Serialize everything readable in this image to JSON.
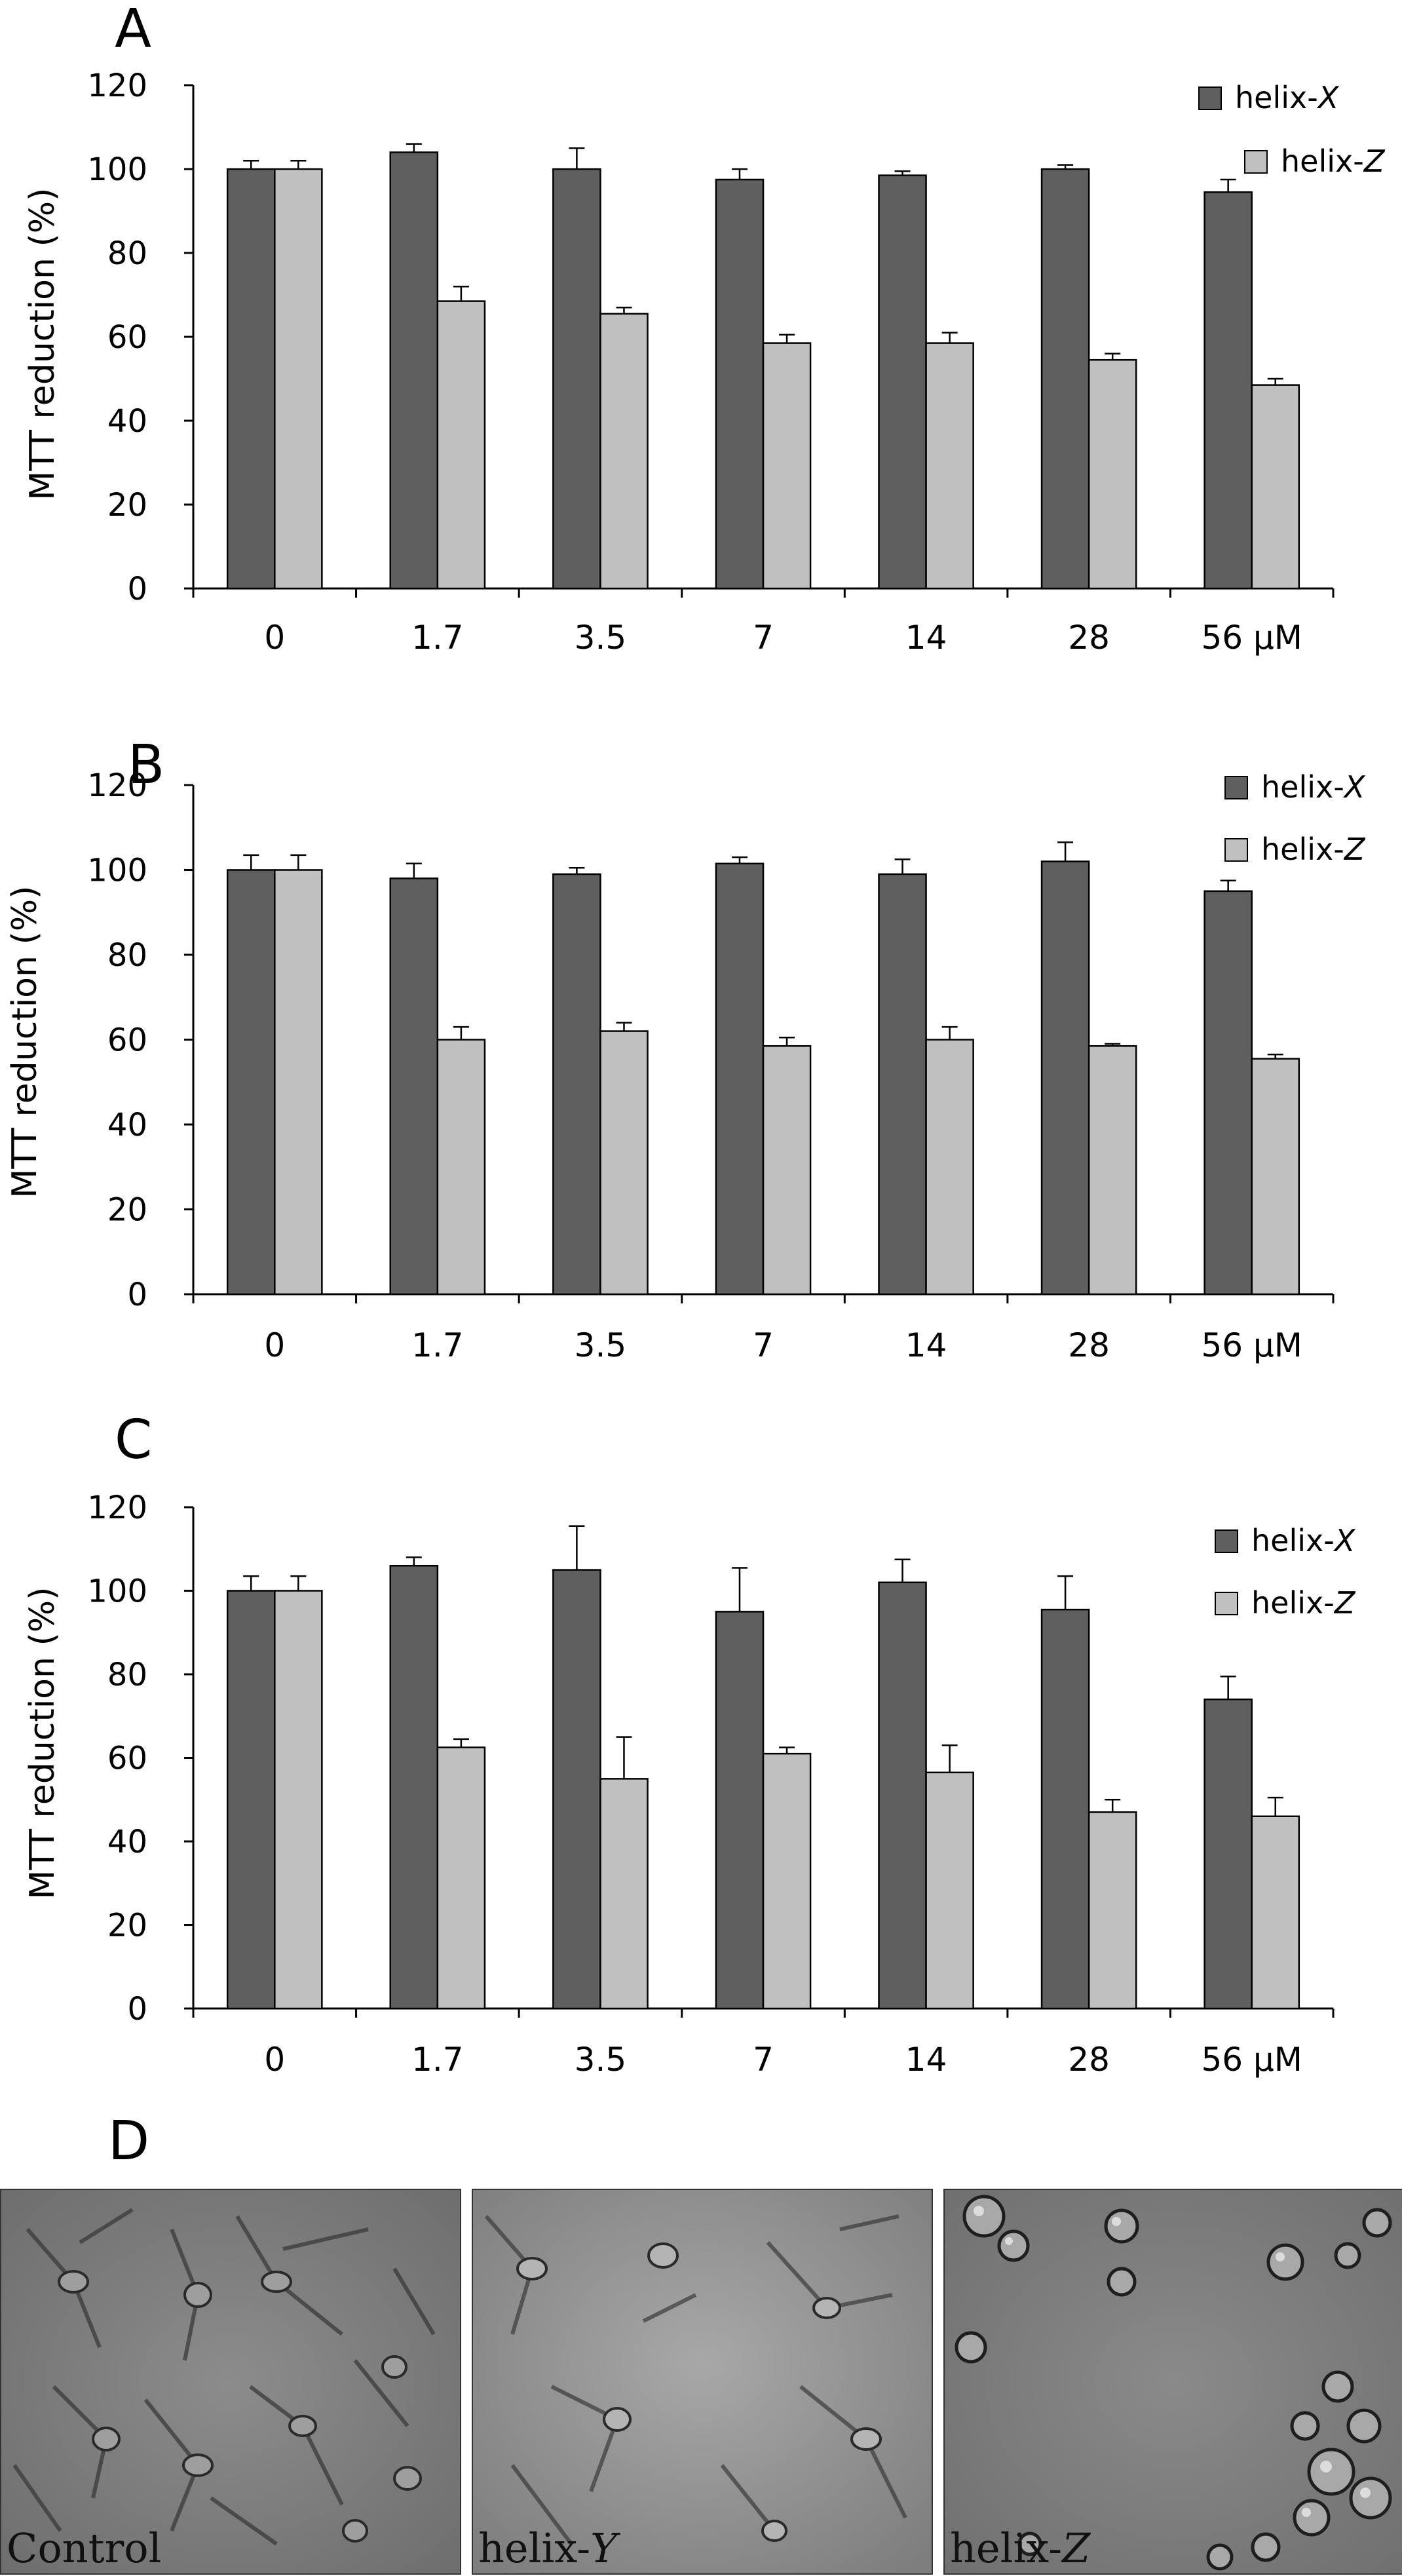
{
  "panels_abc": [
    {
      "panel_label": "A",
      "chart_data": {
        "type": "bar",
        "categories": [
          "0",
          "1.7",
          "3.5",
          "7",
          "14",
          "28",
          "56 µM"
        ],
        "series": [
          {
            "name": "helix-X",
            "values": [
              100,
              104,
              100,
              97.5,
              98.5,
              100,
              94.5
            ],
            "errors": [
              2,
              2,
              5,
              2.5,
              1,
              1,
              3
            ],
            "color": "#5f5f5f"
          },
          {
            "name": "helix-Z",
            "values": [
              100,
              68.5,
              65.5,
              58.5,
              58.5,
              54.5,
              48.5
            ],
            "errors": [
              2,
              3.5,
              1.5,
              2,
              2.5,
              1.5,
              1.5
            ],
            "color": "#c0c0c0"
          }
        ],
        "ylabel": "MTT reduction (%)",
        "ylim": [
          0,
          120
        ],
        "yticks": [
          "0",
          "20",
          "40",
          "60",
          "80",
          "100",
          "120"
        ],
        "legend": [
          "helix-",
          "X",
          "helix-",
          "Z"
        ]
      }
    },
    {
      "panel_label": "B",
      "chart_data": {
        "type": "bar",
        "categories": [
          "0",
          "1.7",
          "3.5",
          "7",
          "14",
          "28",
          "56 µM"
        ],
        "series": [
          {
            "name": "helix-X",
            "values": [
              100,
              98,
              99,
              101.5,
              99,
              102,
              95
            ],
            "errors": [
              3.5,
              3.5,
              1.5,
              1.5,
              3.5,
              4.5,
              2.5
            ],
            "color": "#5f5f5f"
          },
          {
            "name": "helix-Z",
            "values": [
              100,
              60,
              62,
              58.5,
              60,
              58.5,
              55.5
            ],
            "errors": [
              3.5,
              3,
              2,
              2,
              3,
              0.5,
              1
            ],
            "color": "#c0c0c0"
          }
        ],
        "ylabel": "MTT reduction (%)",
        "ylim": [
          0,
          120
        ],
        "yticks": [
          "0",
          "20",
          "40",
          "60",
          "80",
          "100",
          "120"
        ],
        "legend": [
          "helix-",
          "X",
          "helix-",
          "Z"
        ]
      }
    },
    {
      "panel_label": "C",
      "chart_data": {
        "type": "bar",
        "categories": [
          "0",
          "1.7",
          "3.5",
          "7",
          "14",
          "28",
          "56 µM"
        ],
        "series": [
          {
            "name": "helix-X",
            "values": [
              100,
              106,
              105,
              95,
              102,
              95.5,
              74
            ],
            "errors": [
              3.5,
              2,
              10.5,
              10.5,
              5.5,
              8,
              5.5
            ],
            "color": "#5f5f5f"
          },
          {
            "name": "helix-Z",
            "values": [
              100,
              62.5,
              55,
              61,
              56.5,
              47,
              46
            ],
            "errors": [
              3.5,
              2,
              10,
              1.5,
              6.5,
              3,
              4.5
            ],
            "color": "#c0c0c0"
          }
        ],
        "ylabel": "MTT reduction (%)",
        "ylim": [
          0,
          120
        ],
        "yticks": [
          "0",
          "20",
          "40",
          "60",
          "80",
          "100",
          "120"
        ],
        "legend": [
          "helix-",
          "X",
          "helix-",
          "Z"
        ]
      }
    }
  ],
  "panel_d": {
    "panel_label": "D",
    "images": [
      {
        "caption": "Control"
      },
      {
        "caption_prefix": "helix-",
        "caption_italic": "Y"
      },
      {
        "caption_prefix": "helix-",
        "caption_italic": "Z"
      }
    ]
  },
  "colors": {
    "dark_bar": "#5f5f5f",
    "light_bar": "#c0c0c0",
    "axis": "#000000"
  }
}
